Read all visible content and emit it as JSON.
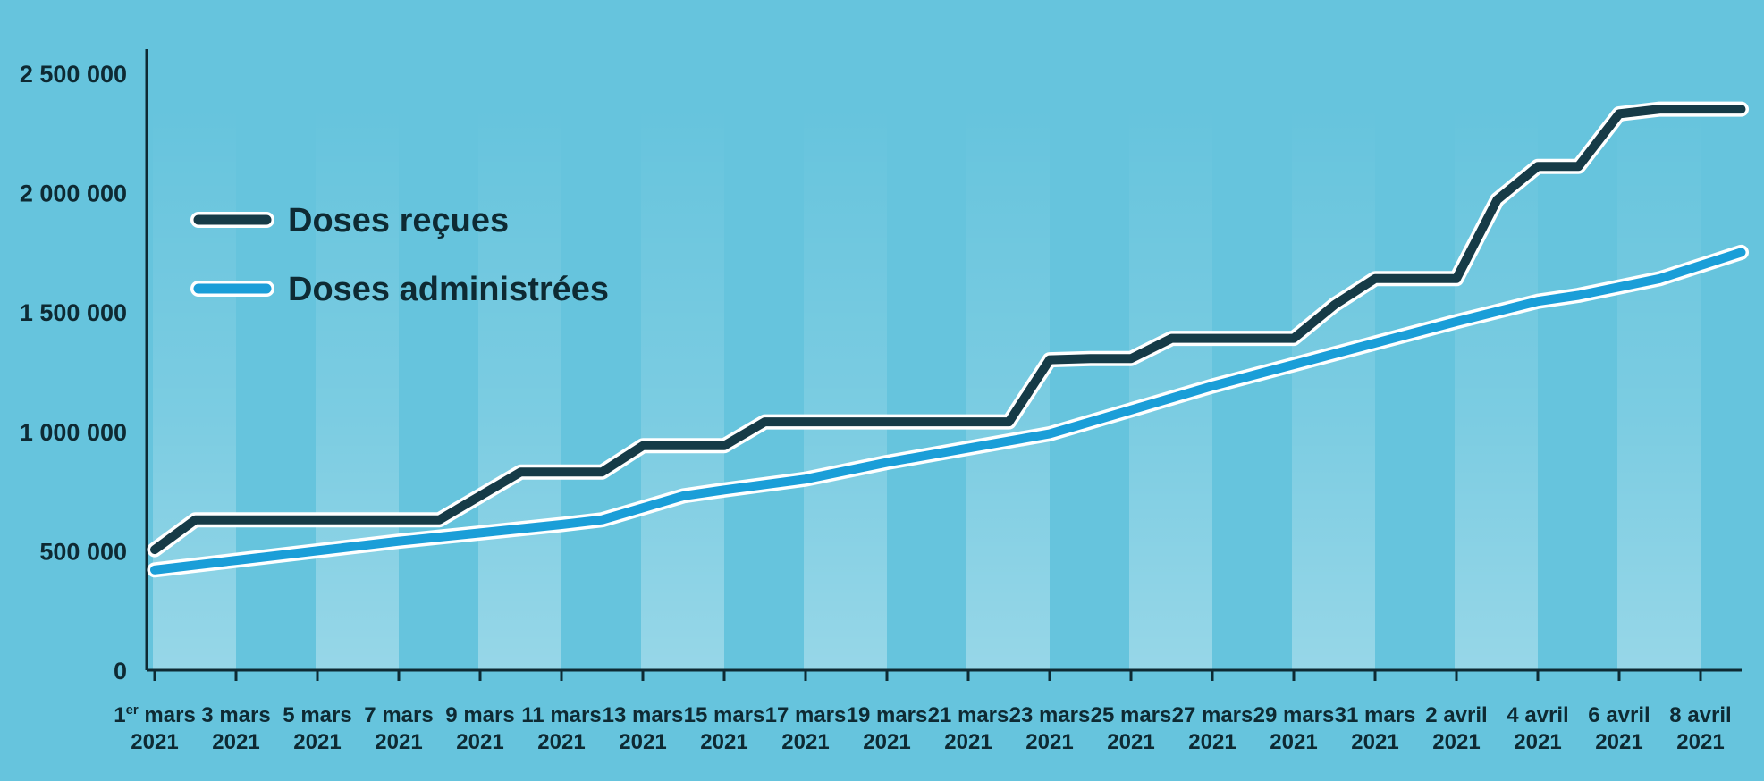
{
  "chart_data": {
    "type": "line",
    "title": "",
    "xlabel": "",
    "ylabel": "",
    "ylim": [
      0,
      2500000
    ],
    "yticks": [
      0,
      500000,
      1000000,
      1500000,
      2000000,
      2500000
    ],
    "ytick_labels": [
      "0",
      "500 000",
      "1 000 000",
      "1 500 000",
      "2 000 000",
      "2 500 000"
    ],
    "grid": false,
    "legend_position": "top-left",
    "categories": [
      {
        "day": "1er mars",
        "year": "2021"
      },
      {
        "day": "3 mars",
        "year": "2021"
      },
      {
        "day": "5 mars",
        "year": "2021"
      },
      {
        "day": "7 mars",
        "year": "2021"
      },
      {
        "day": "9 mars",
        "year": "2021"
      },
      {
        "day": "11 mars",
        "year": "2021"
      },
      {
        "day": "13 mars",
        "year": "2021"
      },
      {
        "day": "15 mars",
        "year": "2021"
      },
      {
        "day": "17 mars",
        "year": "2021"
      },
      {
        "day": "19 mars",
        "year": "2021"
      },
      {
        "day": "21 mars",
        "year": "2021"
      },
      {
        "day": "23 mars",
        "year": "2021"
      },
      {
        "day": "25 mars",
        "year": "2021"
      },
      {
        "day": "27 mars",
        "year": "2021"
      },
      {
        "day": "29 mars",
        "year": "2021"
      },
      {
        "day": "31 mars",
        "year": "2021"
      },
      {
        "day": "2 avril",
        "year": "2021"
      },
      {
        "day": "4 avril",
        "year": "2021"
      },
      {
        "day": "6 avril",
        "year": "2021"
      },
      {
        "day": "8 avril",
        "year": "2021"
      }
    ],
    "series": [
      {
        "name": "Doses reçues",
        "color": "#163b47",
        "x": [
          "2021-03-01",
          "2021-03-02",
          "2021-03-03",
          "2021-03-04",
          "2021-03-05",
          "2021-03-06",
          "2021-03-07",
          "2021-03-08",
          "2021-03-09",
          "2021-03-10",
          "2021-03-11",
          "2021-03-12",
          "2021-03-13",
          "2021-03-14",
          "2021-03-15",
          "2021-03-16",
          "2021-03-17",
          "2021-03-18",
          "2021-03-19",
          "2021-03-20",
          "2021-03-21",
          "2021-03-22",
          "2021-03-23",
          "2021-03-24",
          "2021-03-25",
          "2021-03-26",
          "2021-03-27",
          "2021-03-28",
          "2021-03-29",
          "2021-03-30",
          "2021-03-31",
          "2021-04-01",
          "2021-04-02",
          "2021-04-03",
          "2021-04-04",
          "2021-04-05",
          "2021-04-06",
          "2021-04-07",
          "2021-04-08",
          "2021-04-09"
        ],
        "values": [
          505000,
          630000,
          630000,
          630000,
          630000,
          630000,
          630000,
          630000,
          730000,
          830000,
          830000,
          830000,
          940000,
          940000,
          940000,
          1040000,
          1040000,
          1040000,
          1040000,
          1040000,
          1040000,
          1040000,
          1300000,
          1305000,
          1305000,
          1390000,
          1390000,
          1390000,
          1390000,
          1530000,
          1640000,
          1640000,
          1640000,
          1970000,
          2110000,
          2110000,
          2330000,
          2350000,
          2350000,
          2350000
        ]
      },
      {
        "name": "Doses administrées",
        "color": "#1a9ed8",
        "x": [
          "2021-03-01",
          "2021-03-03",
          "2021-03-05",
          "2021-03-07",
          "2021-03-09",
          "2021-03-11",
          "2021-03-12",
          "2021-03-13",
          "2021-03-14",
          "2021-03-15",
          "2021-03-17",
          "2021-03-19",
          "2021-03-21",
          "2021-03-23",
          "2021-03-25",
          "2021-03-27",
          "2021-03-29",
          "2021-03-31",
          "2021-04-02",
          "2021-04-04",
          "2021-04-05",
          "2021-04-07",
          "2021-04-09"
        ],
        "values": [
          420000,
          460000,
          500000,
          540000,
          575000,
          610000,
          630000,
          680000,
          730000,
          755000,
          800000,
          870000,
          930000,
          990000,
          1090000,
          1190000,
          1280000,
          1370000,
          1460000,
          1545000,
          1570000,
          1640000,
          1750000
        ]
      }
    ]
  }
}
